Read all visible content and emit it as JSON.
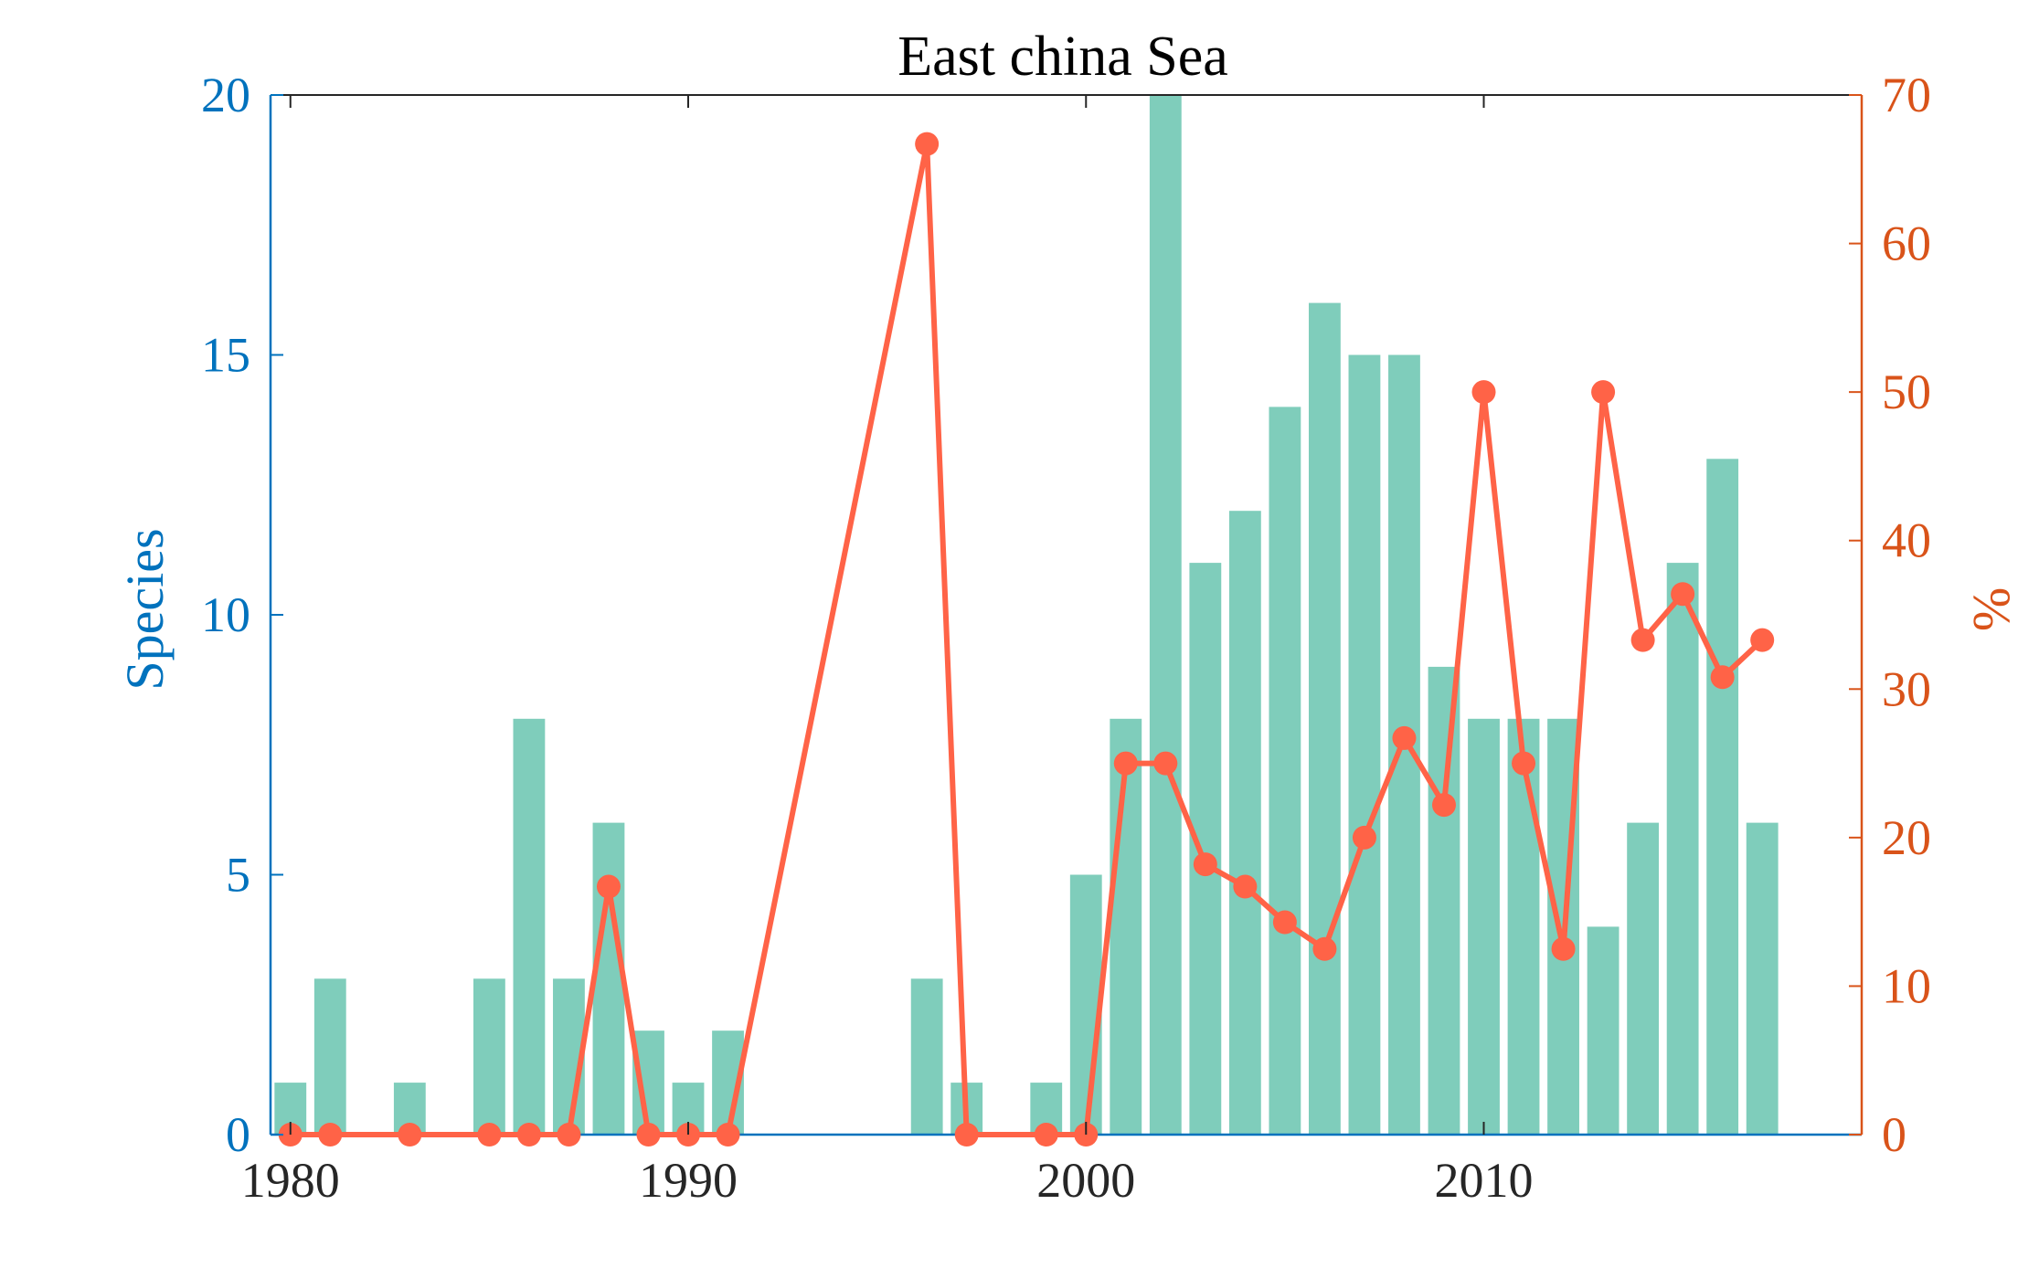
{
  "colors": {
    "bar": "#7FCDBB",
    "line": "#FF6347",
    "left_axis": "#0072BD",
    "right_axis": "#D95319",
    "bottom_axis": "#262626",
    "title": "#000000"
  },
  "chart_data": {
    "type": "bar",
    "title": "East china Sea",
    "xlabel": "",
    "ylabel": "Species",
    "y2label": "%",
    "xlim": [
      1979.5,
      2019.5
    ],
    "ylim": [
      0,
      20
    ],
    "y2lim": [
      0,
      70
    ],
    "x_ticks": [
      1980,
      1990,
      2000,
      2010
    ],
    "y_ticks": [
      0,
      5,
      10,
      15,
      20
    ],
    "y2_ticks": [
      0,
      10,
      20,
      30,
      40,
      50,
      60,
      70
    ],
    "grid": false,
    "legend": "none",
    "bars": {
      "axis": "left",
      "x": [
        1980,
        1981,
        1982,
        1983,
        1984,
        1985,
        1986,
        1987,
        1988,
        1989,
        1990,
        1991,
        1992,
        1993,
        1994,
        1995,
        1996,
        1997,
        1998,
        1999,
        2000,
        2001,
        2002,
        2003,
        2004,
        2005,
        2006,
        2007,
        2008,
        2009,
        2010,
        2011,
        2012,
        2013,
        2014,
        2015,
        2016,
        2017,
        2018
      ],
      "values": [
        1,
        3,
        0,
        1,
        0,
        3,
        8,
        3,
        6,
        2,
        1,
        2,
        0,
        0,
        0,
        0,
        3,
        1,
        0,
        1,
        5,
        8,
        20,
        11,
        12,
        14,
        16,
        15,
        15,
        9,
        8,
        8,
        8,
        4,
        6,
        11,
        13,
        6,
        0
      ]
    },
    "line": {
      "axis": "right",
      "x": [
        1980,
        1981,
        1983,
        1985,
        1986,
        1987,
        1988,
        1989,
        1990,
        1991,
        1996,
        1997,
        1999,
        2000,
        2001,
        2002,
        2003,
        2004,
        2005,
        2006,
        2007,
        2008,
        2009,
        2010,
        2011,
        2012,
        2013,
        2014,
        2015,
        2016,
        2017
      ],
      "values": [
        0,
        0,
        0,
        0,
        0,
        0,
        16.7,
        0,
        0,
        0,
        66.7,
        0,
        0,
        0,
        25,
        25,
        18.2,
        16.7,
        14.3,
        12.5,
        20,
        26.7,
        22.2,
        50,
        25,
        12.5,
        50,
        33.3,
        36.4,
        30.8,
        33.3
      ]
    }
  }
}
